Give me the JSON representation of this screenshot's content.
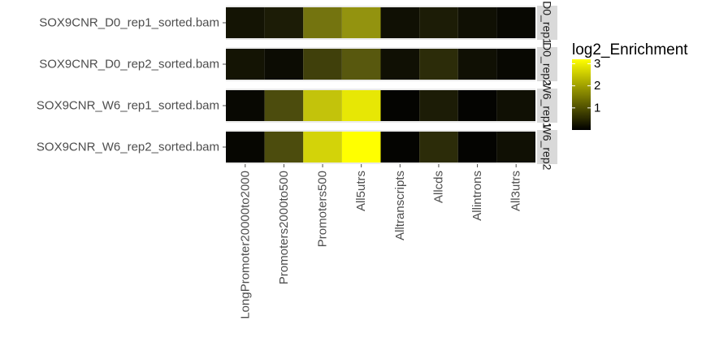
{
  "chart_data": {
    "type": "heatmap",
    "title": "",
    "xlabel": "",
    "ylabel": "",
    "categories": [
      "LongPromoter20000to2000",
      "Promoters2000to500",
      "Promoters500",
      "All5utrs",
      "Alltranscripts",
      "Allcds",
      "Allintrons",
      "All3utrs"
    ],
    "rows": [
      {
        "label": "SOX9CNR_D0_rep1_sorted.bam",
        "strip": "D0_rep1",
        "values": [
          0.25,
          0.35,
          1.45,
          1.85,
          0.2,
          0.35,
          0.2,
          0.1
        ]
      },
      {
        "label": "SOX9CNR_D0_rep2_sorted.bam",
        "strip": "D0_rep2",
        "values": [
          0.25,
          0.15,
          0.8,
          1.1,
          0.2,
          0.55,
          0.2,
          0.1
        ]
      },
      {
        "label": "SOX9CNR_W6_rep1_sorted.bam",
        "strip": "W6_rep1",
        "values": [
          0.1,
          0.95,
          2.45,
          2.9,
          0.05,
          0.35,
          0.05,
          0.2
        ]
      },
      {
        "label": "SOX9CNR_W6_rep2_sorted.bam",
        "strip": "W6_rep2",
        "values": [
          0.08,
          0.95,
          2.65,
          3.2,
          0.05,
          0.55,
          0.05,
          0.2
        ]
      }
    ],
    "colorbar": {
      "title": "log2_Enrichment",
      "ticks": [
        "1",
        "2",
        "3"
      ],
      "tick_values": [
        1,
        2,
        3
      ],
      "range": [
        0,
        3.2
      ],
      "low_color": "#000000",
      "high_color": "#ffff00"
    },
    "colors": {
      "panel_background": "#ebebeb",
      "strip_background": "#d9d9d9",
      "grid_line": "#ffffff"
    }
  }
}
